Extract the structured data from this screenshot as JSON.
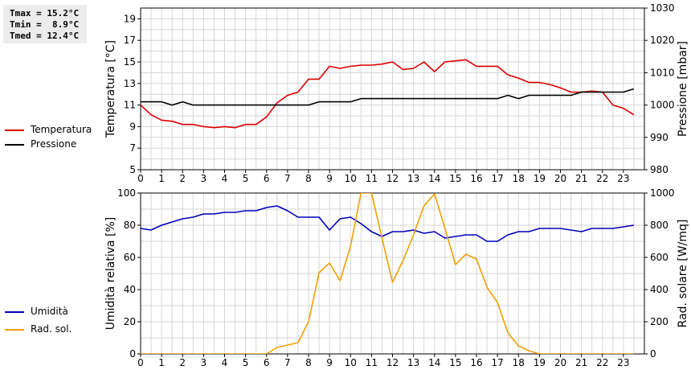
{
  "stats": {
    "tmax": "Tmax = 15.2°C",
    "tmin": "Tmin =  8.9°C",
    "tmed": "Tmed = 12.4°C"
  },
  "legend_top": [
    {
      "label": "Temperatura",
      "color": "#dd0000"
    },
    {
      "label": "Pressione",
      "color": "#000000"
    }
  ],
  "legend_bottom": [
    {
      "label": "Umidità",
      "color": "#0000bb"
    },
    {
      "label": "Rad. sol.",
      "color": "#f0a000"
    }
  ],
  "chart_data": [
    {
      "type": "line",
      "xlabel": "",
      "xlim": [
        0,
        24
      ],
      "x_ticks": [
        0,
        1,
        2,
        3,
        4,
        5,
        6,
        7,
        8,
        9,
        10,
        11,
        12,
        13,
        14,
        15,
        16,
        17,
        18,
        19,
        20,
        21,
        22,
        23
      ],
      "ylabel_left": "Temperatura [°C]",
      "ylim_left": [
        5,
        20
      ],
      "y_ticks_left": [
        5,
        7,
        9,
        11,
        13,
        15,
        17,
        19
      ],
      "ylabel_right": "Pressione [mbar]",
      "ylim_right": [
        980,
        1030
      ],
      "y_ticks_right": [
        980,
        990,
        1000,
        1010,
        1020,
        1030
      ],
      "grid": true,
      "x": [
        0,
        0.5,
        1,
        1.5,
        2,
        2.5,
        3,
        3.5,
        4,
        4.5,
        5,
        5.5,
        6,
        6.5,
        7,
        7.5,
        8,
        8.5,
        9,
        9.5,
        10,
        10.5,
        11,
        11.5,
        12,
        12.5,
        13,
        13.5,
        14,
        14.5,
        15,
        15.5,
        16,
        16.5,
        17,
        17.5,
        18,
        18.5,
        19,
        19.5,
        20,
        20.5,
        21,
        21.5,
        22,
        22.5,
        23,
        23.5
      ],
      "series": [
        {
          "name": "Temperatura",
          "axis": "left",
          "color": "#dd0000",
          "values": [
            11.0,
            10.1,
            9.6,
            9.5,
            9.2,
            9.2,
            9.0,
            8.9,
            9.0,
            8.9,
            9.2,
            9.2,
            9.9,
            11.2,
            11.9,
            12.2,
            13.4,
            13.4,
            14.6,
            14.4,
            14.6,
            14.7,
            14.7,
            14.8,
            15.0,
            14.3,
            14.4,
            15.0,
            14.1,
            15.0,
            15.1,
            15.2,
            14.6,
            14.6,
            14.6,
            13.8,
            13.5,
            13.1,
            13.1,
            12.9,
            12.6,
            12.2,
            12.2,
            12.3,
            12.2,
            11.0,
            10.7,
            10.1
          ]
        },
        {
          "name": "Pressione",
          "axis": "right",
          "color": "#000000",
          "values": [
            1001,
            1001,
            1001,
            1000,
            1001,
            1000,
            1000,
            1000,
            1000,
            1000,
            1000,
            1000,
            1000,
            1000,
            1000,
            1000,
            1000,
            1001,
            1001,
            1001,
            1001,
            1002,
            1002,
            1002,
            1002,
            1002,
            1002,
            1002,
            1002,
            1002,
            1002,
            1002,
            1002,
            1002,
            1002,
            1003,
            1002,
            1003,
            1003,
            1003,
            1003,
            1003,
            1004,
            1004,
            1004,
            1004,
            1004,
            1005
          ]
        }
      ]
    },
    {
      "type": "line",
      "xlabel": "",
      "xlim": [
        0,
        24
      ],
      "x_ticks": [
        0,
        1,
        2,
        3,
        4,
        5,
        6,
        7,
        8,
        9,
        10,
        11,
        12,
        13,
        14,
        15,
        16,
        17,
        18,
        19,
        20,
        21,
        22,
        23
      ],
      "ylabel_left": "Umidità relativa [%]",
      "ylim_left": [
        0,
        100
      ],
      "y_ticks_left": [
        0,
        20,
        40,
        60,
        80,
        100
      ],
      "ylabel_right": "Rad. solare [W/mq]",
      "ylim_right": [
        0,
        1000
      ],
      "y_ticks_right": [
        0,
        200,
        400,
        600,
        800,
        1000
      ],
      "grid": true,
      "x": [
        0,
        0.5,
        1,
        1.5,
        2,
        2.5,
        3,
        3.5,
        4,
        4.5,
        5,
        5.5,
        6,
        6.5,
        7,
        7.5,
        8,
        8.5,
        9,
        9.5,
        10,
        10.5,
        11,
        11.5,
        12,
        12.5,
        13,
        13.5,
        14,
        14.5,
        15,
        15.5,
        16,
        16.5,
        17,
        17.5,
        18,
        18.5,
        19,
        19.5,
        20,
        20.5,
        21,
        21.5,
        22,
        22.5,
        23,
        23.5
      ],
      "series": [
        {
          "name": "Umidità",
          "axis": "left",
          "color": "#0000bb",
          "values": [
            78,
            77,
            80,
            82,
            84,
            85,
            87,
            87,
            88,
            88,
            89,
            89,
            91,
            92,
            89,
            85,
            85,
            85,
            77,
            84,
            85,
            81,
            76,
            73,
            76,
            76,
            77,
            75,
            76,
            72,
            73,
            74,
            74,
            70,
            70,
            74,
            76,
            76,
            78,
            78,
            78,
            77,
            76,
            78,
            78,
            78,
            79,
            80
          ]
        },
        {
          "name": "Rad. sol.",
          "axis": "right",
          "color": "#f0a000",
          "values": [
            0,
            0,
            0,
            0,
            0,
            0,
            0,
            0,
            0,
            0,
            0,
            0,
            0,
            40,
            55,
            70,
            200,
            505,
            565,
            455,
            670,
            1000,
            1000,
            720,
            445,
            580,
            740,
            920,
            995,
            780,
            555,
            620,
            590,
            415,
            320,
            130,
            50,
            20,
            0,
            0,
            0,
            0,
            0,
            0,
            0,
            0,
            0,
            0
          ]
        }
      ]
    }
  ]
}
